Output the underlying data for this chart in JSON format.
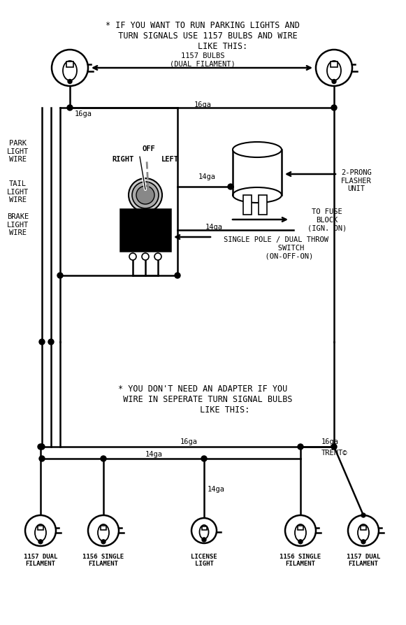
{
  "bg_color": "#ffffff",
  "line_color": "#000000",
  "title_top": "* IF YOU WANT TO RUN PARKING LIGHTS AND\n  TURN SIGNALS USE 1157 BULBS AND WIRE\n        LIKE THIS:",
  "title_bottom": "* YOU DON'T NEED AN ADAPTER IF YOU\n  WIRE IN SEPERATE TURN SIGNAL BULBS\n         LIKE THIS:",
  "top_arrow_label": "1157 BULBS\n(DUAL FILAMENT)",
  "labels_left": [
    "PARK\nLIGHT\nWIRE",
    "TAIL\nLIGHT\nWIRE",
    "BRAKE\nLIGHT\nWIRE"
  ],
  "switch_label": "ON-OFF-ON",
  "off_label": "OFF",
  "right_label": "RIGHT",
  "left_label": "LEFT",
  "flasher_label": "2-PRONG\nFLASHER\nUNIT",
  "fuse_label": "TO FUSE\nBLOCK\n(IGN. ON)",
  "spdt_label": "SINGLE POLE / DUAL THROW\n       SWITCH\n      (ON-OFF-ON)",
  "ga16": "16ga",
  "ga14": "14ga",
  "bottom_labels": [
    "1157 DUAL\nFILAMENT",
    "1156 SINGLE\nFILAMENT",
    "LICENSE\nLIGHT",
    "1156 SINGLE\nFILAMENT",
    "1157 DUAL\nFILAMENT"
  ],
  "copyright": "TRENT©",
  "font_size": 7.5,
  "title_font_size": 8.5
}
